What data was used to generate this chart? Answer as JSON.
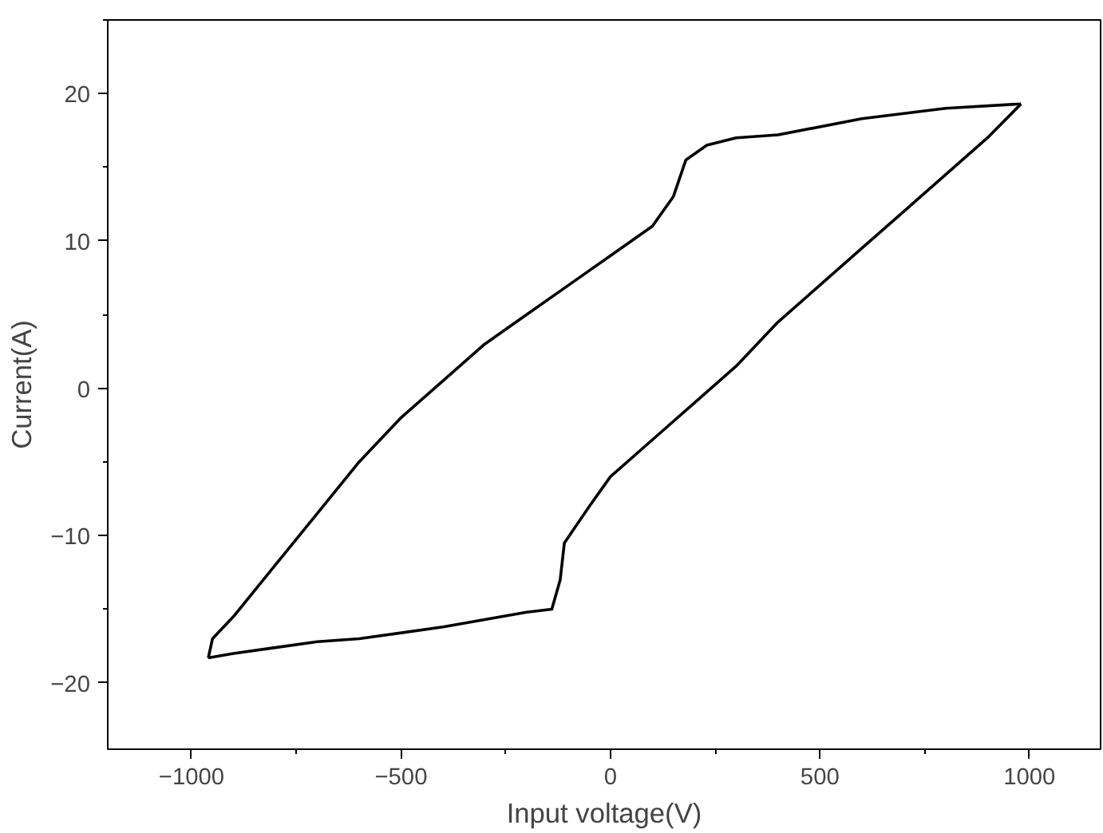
{
  "chart_data": {
    "type": "line",
    "xlabel": "Input voltage(V)",
    "ylabel": "Current(A)",
    "xlim": [
      -1200,
      1170
    ],
    "ylim": [
      -24.5,
      25
    ],
    "xticks": [
      -1000,
      -500,
      0,
      500,
      1000
    ],
    "yticks": [
      -20,
      -10,
      0,
      10,
      20
    ],
    "line_style": "solid",
    "series": [
      {
        "color": "#000000",
        "x": [
          -960,
          -950,
          -900,
          -800,
          -700,
          -600,
          -500,
          -400,
          -300,
          -200,
          -100,
          0,
          100,
          150,
          180,
          230,
          300,
          400,
          600,
          800,
          980
        ],
        "values": [
          -18.3,
          -17,
          -15.5,
          -12,
          -8.5,
          -5,
          -2,
          0.5,
          3,
          5,
          7,
          9,
          11,
          13,
          15.5,
          16.5,
          17.0,
          17.2,
          18.3,
          19.0,
          19.3
        ]
      },
      {
        "color": "#000000",
        "x": [
          -960,
          -900,
          -800,
          -700,
          -600,
          -400,
          -200,
          -140,
          -120,
          -110,
          -50,
          0,
          100,
          200,
          300,
          400,
          500,
          600,
          700,
          800,
          900,
          980
        ],
        "values": [
          -18.3,
          -18,
          -17.6,
          -17.2,
          -17,
          -16.2,
          -15.2,
          -15,
          -13,
          -10.5,
          -8,
          -6,
          -3.5,
          -1,
          1.5,
          4.5,
          7,
          9.5,
          12,
          14.5,
          17,
          19.3
        ]
      }
    ]
  }
}
